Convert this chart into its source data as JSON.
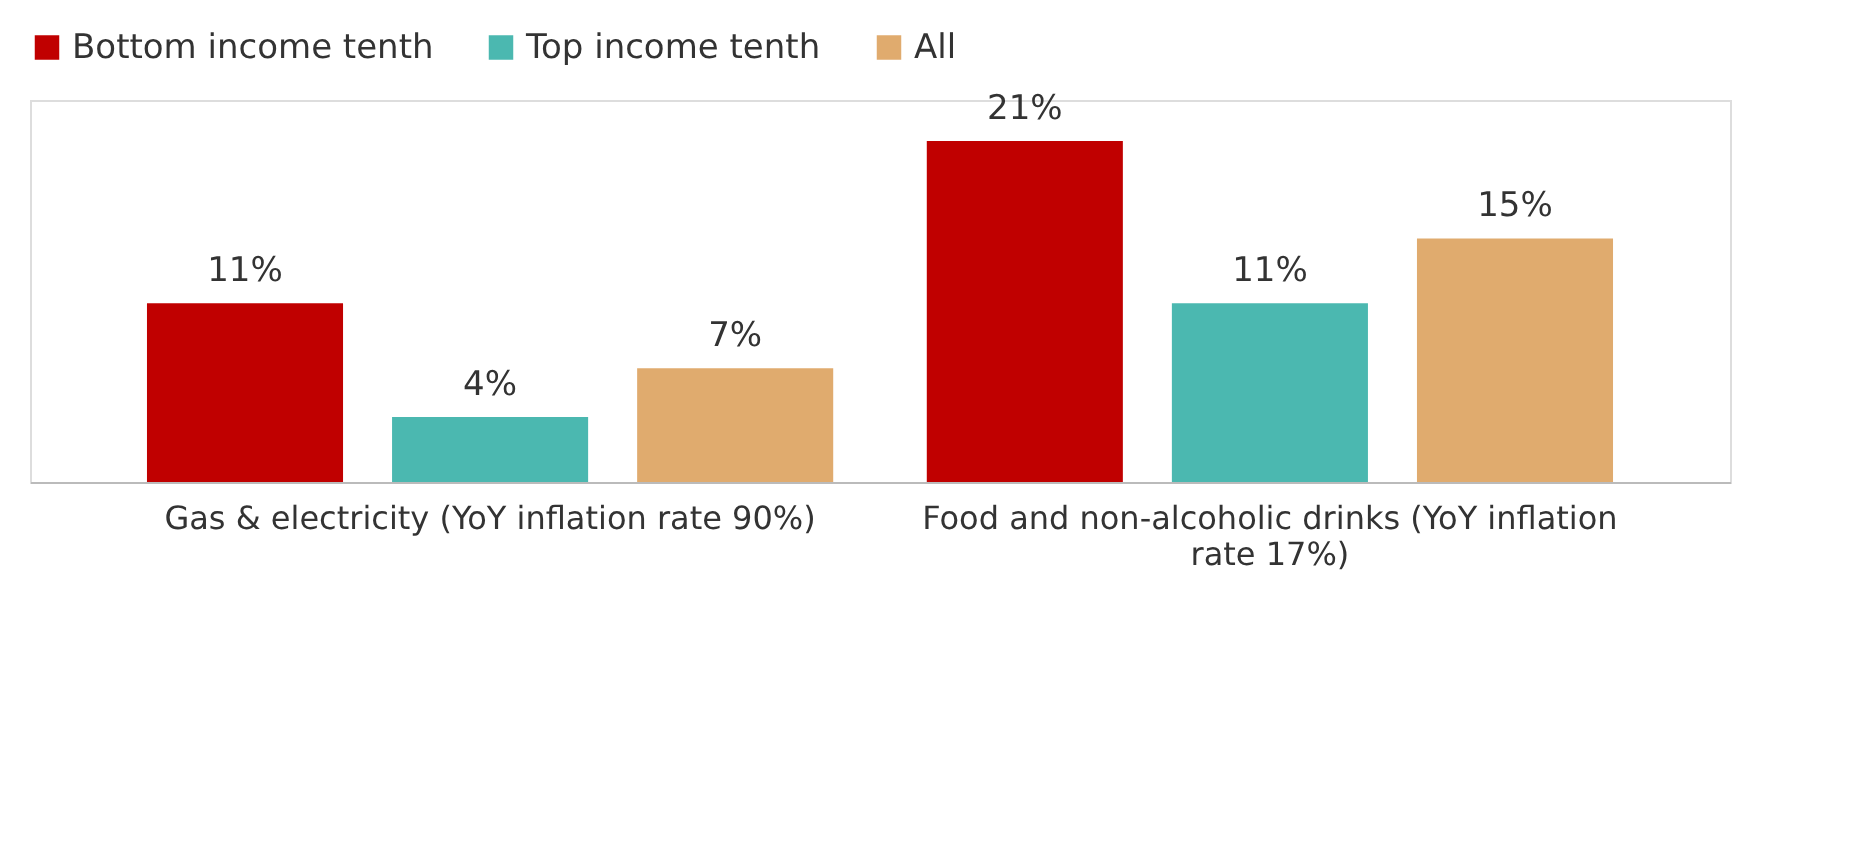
{
  "chart_data": {
    "type": "bar",
    "categories": [
      "Gas & electricity (YoY inflation rate 90%)",
      "Food and non-alcoholic drinks (YoY inflation rate 17%)"
    ],
    "series": [
      {
        "name": "Bottom income tenth",
        "color": "#c00000",
        "values": [
          11,
          21
        ],
        "value_labels": [
          "11%",
          "21%"
        ]
      },
      {
        "name": "Top income tenth",
        "color": "#4bb8b0",
        "values": [
          4,
          11
        ],
        "value_labels": [
          "4%",
          "11%"
        ]
      },
      {
        "name": "All",
        "color": "#e0ab6e",
        "values": [
          7,
          15
        ],
        "value_labels": [
          "7%",
          "15%"
        ]
      }
    ],
    "legend": "top",
    "grid": false
  }
}
